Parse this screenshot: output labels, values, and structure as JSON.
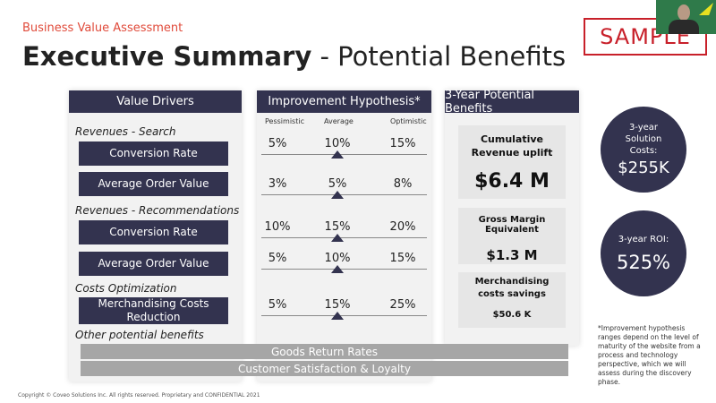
{
  "header": {
    "subtitle": "Business Value Assessment",
    "title_bold": "Executive Summary",
    "title_rest": " - Potential Benefits",
    "sample": "SAMPLE"
  },
  "drivers": {
    "header": "Value Drivers",
    "cat1": "Revenues - Search",
    "cat2": "Revenues - Recommendations",
    "cat3": "Costs Optimization",
    "cat4": "Other potential benefits",
    "items": [
      "Conversion Rate",
      "Average Order Value",
      "Conversion Rate",
      "Average Order Value",
      "Merchandising Costs Reduction"
    ]
  },
  "hypothesis": {
    "header": "Improvement Hypothesis*",
    "cols": [
      "Pessimistic",
      "Average",
      "Optimistic"
    ],
    "rows": [
      [
        "5%",
        "10%",
        "15%"
      ],
      [
        "3%",
        "5%",
        "8%"
      ],
      [
        "10%",
        "15%",
        "20%"
      ],
      [
        "5%",
        "10%",
        "15%"
      ],
      [
        "5%",
        "15%",
        "25%"
      ]
    ]
  },
  "benefits": {
    "header": "3-Year Potential Benefits",
    "b1_label": "Cumulative Revenue uplift",
    "b1_value": "$6.4 M",
    "b2_label": "Gross Margin Equivalent",
    "b2_value": "$1.3 M",
    "b3_label": "Merchandising costs savings",
    "b3_value": "$50.6 K"
  },
  "circles": {
    "c1_label": "3-year Solution Costs:",
    "c1_value": "$255K",
    "c2_label": "3-year ROI:",
    "c2_value": "525%"
  },
  "bars": [
    "Goods Return Rates",
    "Customer Satisfaction & Loyalty"
  ],
  "note": "*Improvement hypothesis ranges depend on the level of maturity of the website from a process and technology perspective, which we will assess during the discovery phase.",
  "footer": "Copyright © Coveo Solutions Inc. All rights reserved. Proprietary and CONFIDENTIAL 2021",
  "colors": {
    "navy": "#33334f",
    "red": "#c8202a",
    "gray": "#a6a6a6"
  }
}
